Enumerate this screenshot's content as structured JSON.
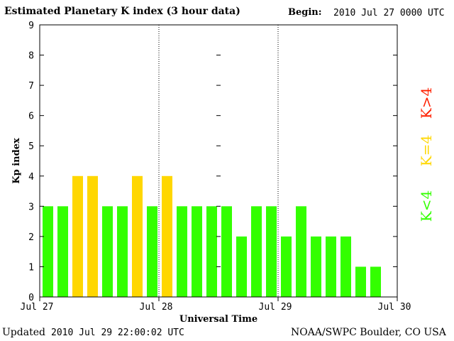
{
  "header": {
    "title": "Estimated Planetary K index (3 hour data)",
    "begin_label": "Begin:",
    "begin_value": "2010 Jul 27 0000 UTC"
  },
  "footer": {
    "updated_label": "Updated",
    "updated_value": "2010 Jul 29 22:00:02 UTC",
    "credit": "NOAA/SWPC Boulder, CO USA"
  },
  "legend": [
    {
      "label": "K<4",
      "color": "#33ff00"
    },
    {
      "label": "K=4",
      "color": "#ffd700"
    },
    {
      "label": "K>4",
      "color": "#ff2000"
    }
  ],
  "chart_data": {
    "type": "bar",
    "xlabel": "Universal Time",
    "ylabel": "Kp index",
    "ylim": [
      0,
      9
    ],
    "yticks": [
      0,
      1,
      2,
      3,
      4,
      5,
      6,
      7,
      8,
      9
    ],
    "xticks": [
      "Jul 27",
      "Jul 28",
      "Jul 29",
      "Jul 30"
    ],
    "day_separators": [
      "Jul 28",
      "Jul 29"
    ],
    "interval": "3 hour",
    "values": [
      3,
      3,
      4,
      4,
      3,
      3,
      4,
      3,
      4,
      3,
      3,
      3,
      3,
      2,
      3,
      3,
      2,
      3,
      2,
      2,
      2,
      1,
      1
    ]
  }
}
